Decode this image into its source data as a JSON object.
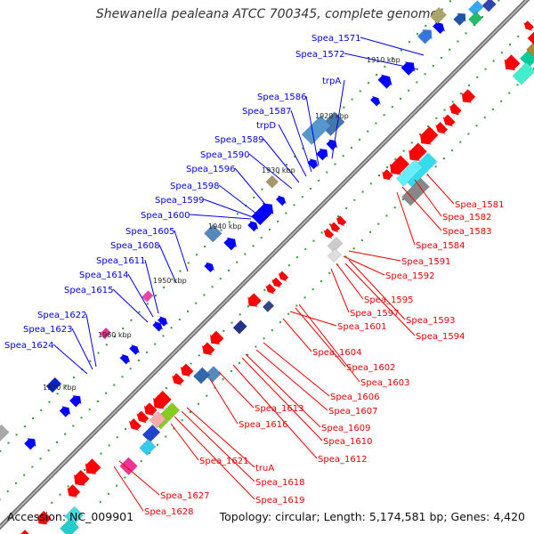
{
  "header": {
    "title": "Shewanella pealeana ATCC 700345, complete genome"
  },
  "footer": {
    "accession": "Accession: NC_009901",
    "summary": "Topology: circular; Length: 5,174,581 bp; Genes: 4,420"
  },
  "colors": {
    "forward_label": "#0000ee",
    "reverse_label": "#ee0000",
    "backbone": "#777777",
    "tick": "#339933"
  },
  "scale": [
    "1910 kbp",
    "1920 kbp",
    "1930 kbp",
    "1940 kbp",
    "1950 kbp",
    "1960 kbp",
    "1970 kbp"
  ],
  "forward_labels": [
    "Spea_1571",
    "Spea_1572",
    "trpA",
    "Spea_1586",
    "Spea_1587",
    "trpD",
    "Spea_1589",
    "Spea_1590",
    "Spea_1596",
    "Spea_1598",
    "Spea_1599",
    "Spea_1600",
    "Spea_1605",
    "Spea_1608",
    "Spea_1611",
    "Spea_1614",
    "Spea_1615",
    "Spea_1622",
    "Spea_1623",
    "Spea_1624"
  ],
  "reverse_labels": [
    "Spea_1581",
    "Spea_1582",
    "Spea_1583",
    "Spea_1584",
    "Spea_1591",
    "Spea_1592",
    "Spea_1595",
    "Spea_1597",
    "Spea_1593",
    "Spea_1594",
    "Spea_1601",
    "Spea_1604",
    "Spea_1602",
    "Spea_1603",
    "Spea_1606",
    "Spea_1607",
    "Spea_1613",
    "Spea_1616",
    "Spea_1609",
    "Spea_1610",
    "Spea_1612",
    "Spea_1621",
    "truA",
    "Spea_1618",
    "Spea_1619",
    "Spea_1627",
    "Spea_1628"
  ]
}
